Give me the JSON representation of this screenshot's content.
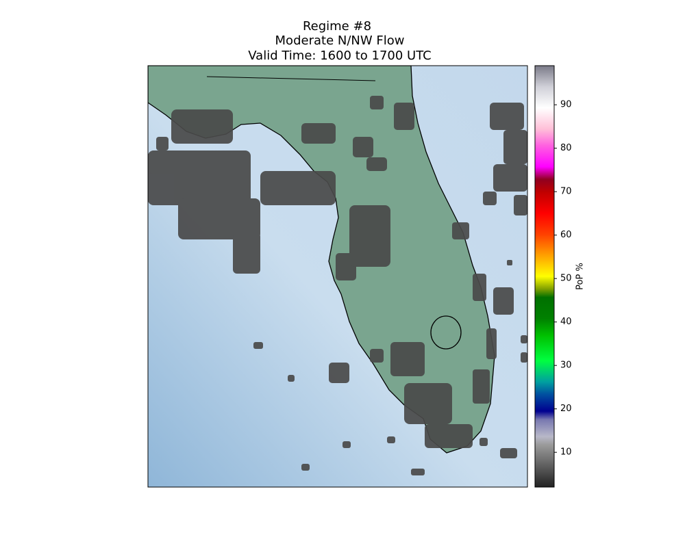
{
  "title": {
    "lines": [
      "Regime #8",
      "Moderate N/NW Flow",
      "Valid Time: 1600 to 1700 UTC"
    ]
  },
  "colorbar": {
    "label": "PoP %",
    "lim": [
      2,
      99
    ],
    "ticks": [
      10,
      20,
      30,
      40,
      50,
      60,
      70,
      80,
      90
    ]
  }
}
